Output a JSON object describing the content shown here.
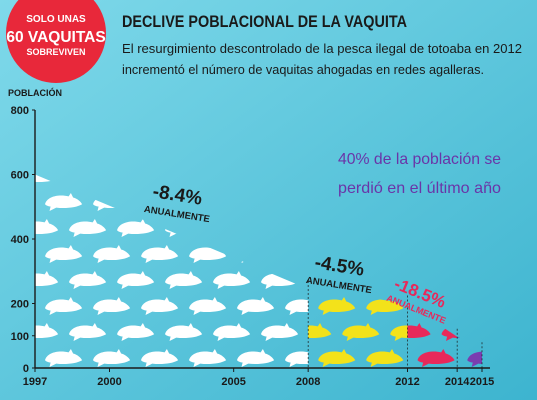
{
  "badge": {
    "line1": "SOLO UNAS",
    "line2": "60 VAQUITAS",
    "line3": "SOBREVIVEN",
    "color": "#e8283a"
  },
  "header": {
    "title": "DECLIVE POBLACIONAL DE LA VAQUITA",
    "subtitle_line1": "El resurgimiento descontrolado de la pesca ilegal de totoaba en 2012",
    "subtitle_line2": "incrementó el número de vaquitas  ahogadas en redes agalleras."
  },
  "callout": {
    "line1": "40% de la población se",
    "line2": "perdió en el último año",
    "color": "#6a35a8"
  },
  "colors": {
    "background": "#5cc8dc",
    "white_vaquita": "#ffffff",
    "yellow_vaquita": "#f3e21a",
    "red_vaquita": "#e8285a",
    "purple_vaquita": "#7a3db0",
    "text": "#1a1a1a"
  },
  "chart_data": {
    "type": "area",
    "ylabel": "POBLACIÓN",
    "yticks": [
      0,
      100,
      200,
      400,
      600,
      800
    ],
    "ylim": [
      0,
      800
    ],
    "xlim": [
      1997,
      2015
    ],
    "xticks": [
      1997,
      2000,
      2005,
      2008,
      2012,
      2014,
      2015
    ],
    "series": [
      {
        "color": "#ffffff",
        "points": [
          [
            1997,
            600
          ],
          [
            2008,
            245
          ]
        ]
      },
      {
        "color": "#f3e21a",
        "points": [
          [
            2008,
            245
          ],
          [
            2012,
            200
          ]
        ]
      },
      {
        "color": "#e8285a",
        "points": [
          [
            2012,
            200
          ],
          [
            2014,
            97
          ]
        ]
      },
      {
        "color": "#7a3db0",
        "points": [
          [
            2014,
            97
          ],
          [
            2015,
            60
          ]
        ]
      }
    ],
    "annotations": [
      {
        "rate": "-8.4%",
        "label": "ANUALMENTE",
        "color": "#1a1a1a"
      },
      {
        "rate": "-4.5%",
        "label": "ANUALMENTE",
        "color": "#1a1a1a"
      },
      {
        "rate": "-18.5%",
        "label": "ANUALMENTE",
        "color": "#e8285a"
      }
    ]
  }
}
